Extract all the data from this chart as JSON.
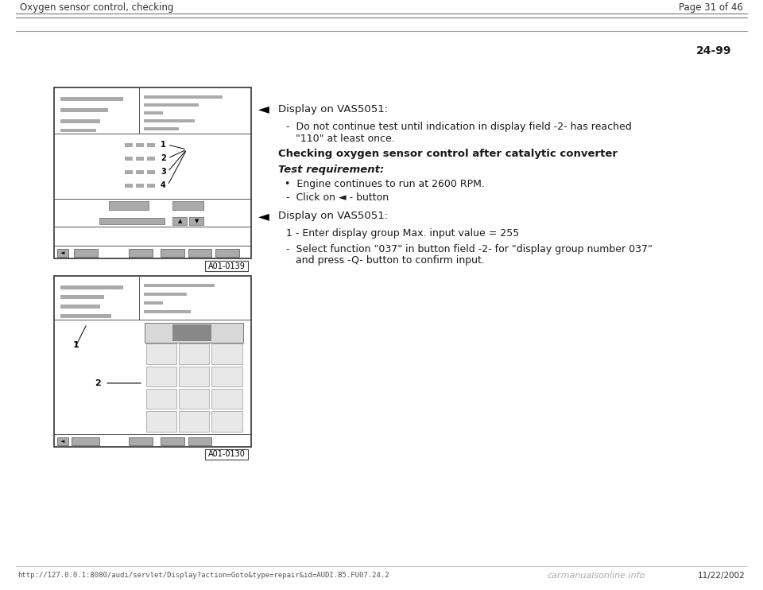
{
  "bg_color": "#ffffff",
  "header_left": "Oxygen sensor control, checking",
  "header_right": "Page 31 of 46",
  "page_num": "24-99",
  "footer_url": "http://127.0.0.1:8080/audi/servlet/Display?action=Goto&type=repair&id=AUDI.B5.FU07.24.2",
  "footer_right": "11/22/2002",
  "footer_logo": "carmanualsonline.info",
  "section1_arrow_text": "Display on VAS5051:",
  "section1_bullet": "Do not continue test until indication in display field -2- has reached\n\"110\" at least once.",
  "section1_heading": "Checking oxygen sensor control after catalytic converter",
  "section1_req_label": "Test requirement:",
  "section1_bullet2": "Engine continues to run at 2600 RPM.",
  "section1_dash": "Click on ◄ - button",
  "section2_arrow_text": "Display on VAS5051:",
  "section2_item1": "1 - Enter display group Max. input value = 255",
  "section2_item2": "Select function \"037\" in button field -2- for \"display group number 037\"\nand press -Q- button to confirm input.",
  "diag1_label": "A01-0139",
  "diag2_label": "A01-0130",
  "gray_light": "#c8c8c8",
  "gray_mid": "#aaaaaa",
  "gray_dark": "#888888",
  "gray_box": "#d8d8d8",
  "gray_header": "#b0b0b0",
  "text_color": "#1a1a1a"
}
